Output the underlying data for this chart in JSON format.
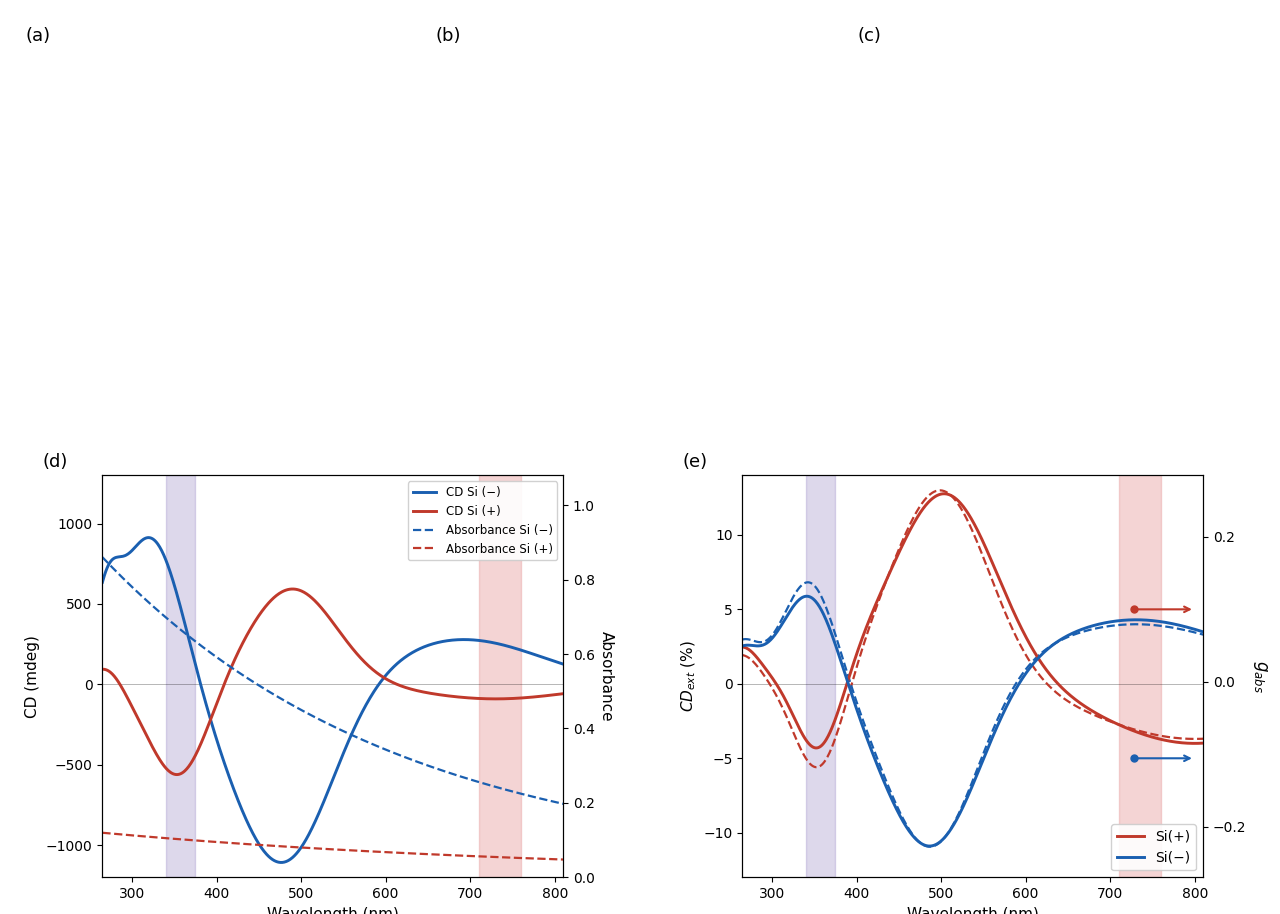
{
  "fig_width": 12.8,
  "fig_height": 9.14,
  "background_color": "#ffffff",
  "panel_d": {
    "xlabel": "Wavelength (nm)",
    "ylabel_left": "CD (mdeg)",
    "ylabel_right": "Absorbance",
    "xlim": [
      265,
      810
    ],
    "ylim_left": [
      -1200,
      1300
    ],
    "ylim_right": [
      0.0,
      1.08
    ],
    "xticks": [
      300,
      400,
      500,
      600,
      700,
      800
    ],
    "yticks_left": [
      -1000,
      -500,
      0,
      500,
      1000
    ],
    "yticks_right": [
      0.0,
      0.2,
      0.4,
      0.6,
      0.8,
      1.0
    ],
    "purple_band": [
      340,
      375
    ],
    "red_band": [
      710,
      760
    ],
    "purple_color": "#9080c0",
    "red_band_color": "#e8a0a0",
    "cd_si_minus_color": "#1a5fb0",
    "cd_si_plus_color": "#c0392b",
    "abs_si_minus_color": "#1a5fb0",
    "abs_si_plus_color": "#c0392b",
    "legend_labels": [
      "CD Si (−)",
      "CD Si (+)",
      "Absorbance Si (−)",
      "Absorbance Si (+)"
    ]
  },
  "panel_e": {
    "xlabel": "Wavelength (nm)",
    "ylabel_left": "CD_ext (%)",
    "ylabel_right": "g_abs",
    "xlim": [
      265,
      810
    ],
    "ylim_left": [
      -13,
      14
    ],
    "ylim_right": [
      -0.27,
      0.285
    ],
    "xticks": [
      300,
      400,
      500,
      600,
      700,
      800
    ],
    "yticks_left": [
      -10,
      -5,
      0,
      5,
      10
    ],
    "yticks_right": [
      -0.2,
      0.0,
      0.2
    ],
    "purple_band": [
      340,
      375
    ],
    "red_band": [
      710,
      760
    ],
    "purple_color": "#9080c0",
    "red_band_color": "#e8a0a0",
    "si_plus_color": "#c0392b",
    "si_minus_color": "#1a5fb0",
    "legend_labels": [
      "Si(+)",
      "Si(−)"
    ]
  }
}
